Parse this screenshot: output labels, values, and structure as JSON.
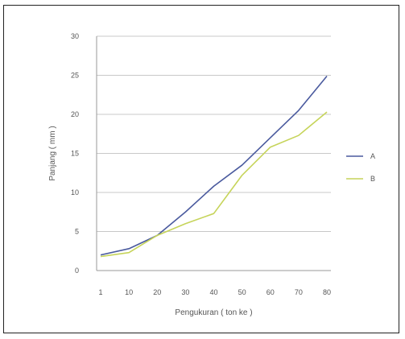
{
  "chart_data": {
    "type": "line",
    "x": [
      "1",
      "10",
      "20",
      "30",
      "40",
      "50",
      "60",
      "70",
      "80"
    ],
    "xlabel": "Pengukuran ( ton ke )",
    "ylabel": "Panjang ( mm )",
    "ylim": [
      0,
      30
    ],
    "yticks": [
      "0",
      "5",
      "10",
      "15",
      "20",
      "25",
      "30"
    ],
    "grid": true,
    "legend_position": "right",
    "series": [
      {
        "name": "A",
        "color": "#4a5a9e",
        "values": [
          2.0,
          2.8,
          4.5,
          7.5,
          10.8,
          13.5,
          17.0,
          20.5,
          24.9
        ]
      },
      {
        "name": "B",
        "color": "#c6d45a",
        "values": [
          1.8,
          2.3,
          4.5,
          6.0,
          7.3,
          12.2,
          15.8,
          17.3,
          20.3
        ]
      }
    ]
  }
}
